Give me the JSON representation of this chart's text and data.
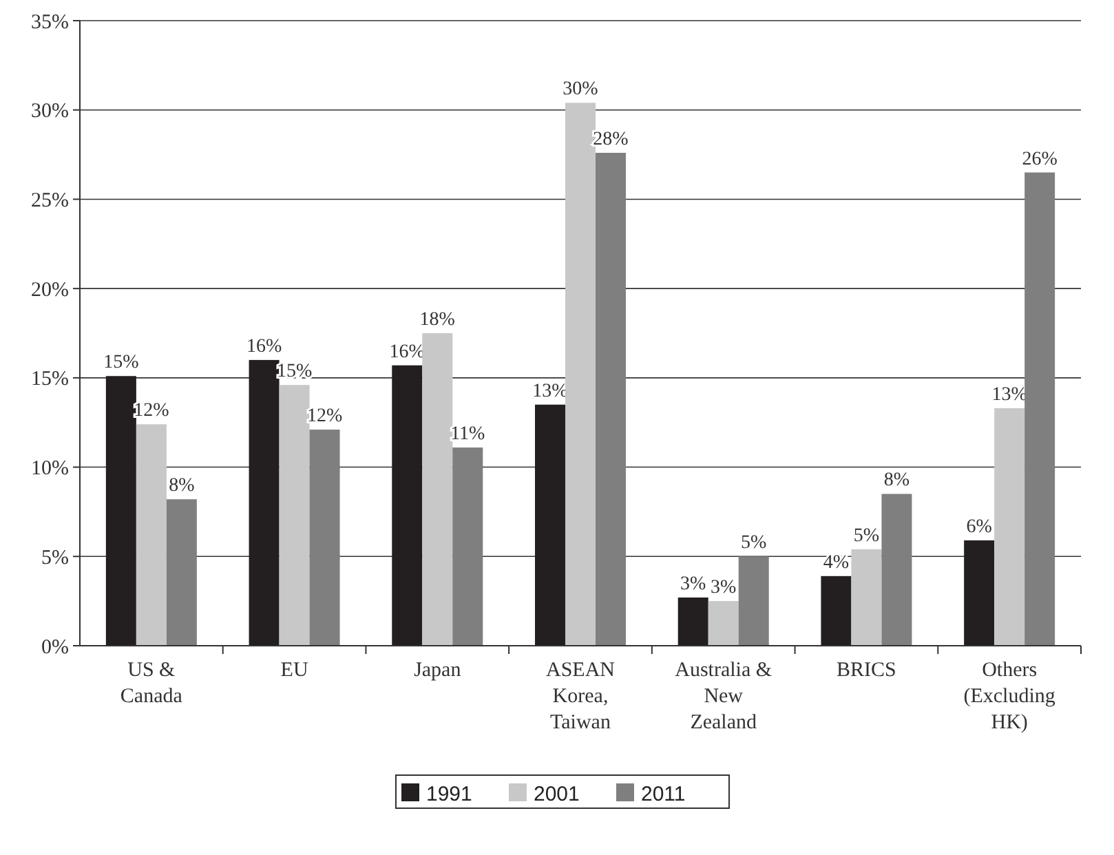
{
  "chart_data": {
    "type": "bar",
    "categories": [
      "US & Canada",
      "EU",
      "Japan",
      "ASEAN Korea, Taiwan",
      "Australia & New Zealand",
      "BRICS",
      "Others (Excluding HK)"
    ],
    "series": [
      {
        "name": "1991",
        "color": "#231f20",
        "values": [
          15.1,
          16.0,
          15.7,
          13.5,
          2.7,
          3.9,
          5.9
        ],
        "value_labels": [
          "15%",
          "16%",
          "16%",
          "13%",
          "3%",
          "4%",
          "6%"
        ]
      },
      {
        "name": "2001",
        "color": "#c8c8c8",
        "values": [
          12.4,
          14.6,
          17.5,
          30.4,
          2.5,
          5.4,
          13.3
        ],
        "value_labels": [
          "12%",
          "15%",
          "18%",
          "30%",
          "3%",
          "5%",
          "13%"
        ]
      },
      {
        "name": "2011",
        "color": "#7f7f7f",
        "values": [
          8.2,
          12.1,
          11.1,
          27.6,
          5.0,
          8.5,
          26.5
        ],
        "value_labels": [
          "8%",
          "12%",
          "11%",
          "28%",
          "5%",
          "8%",
          "26%"
        ]
      }
    ],
    "ylim": [
      0,
      35
    ],
    "yticks": [
      {
        "value": 0,
        "label": "0%"
      },
      {
        "value": 5,
        "label": "5%"
      },
      {
        "value": 10,
        "label": "10%"
      },
      {
        "value": 15,
        "label": "15%"
      },
      {
        "value": 20,
        "label": "20%"
      },
      {
        "value": 25,
        "label": "25%"
      },
      {
        "value": 30,
        "label": "30%"
      },
      {
        "value": 35,
        "label": "35%"
      }
    ],
    "grid": "y",
    "legend": "bottom"
  }
}
